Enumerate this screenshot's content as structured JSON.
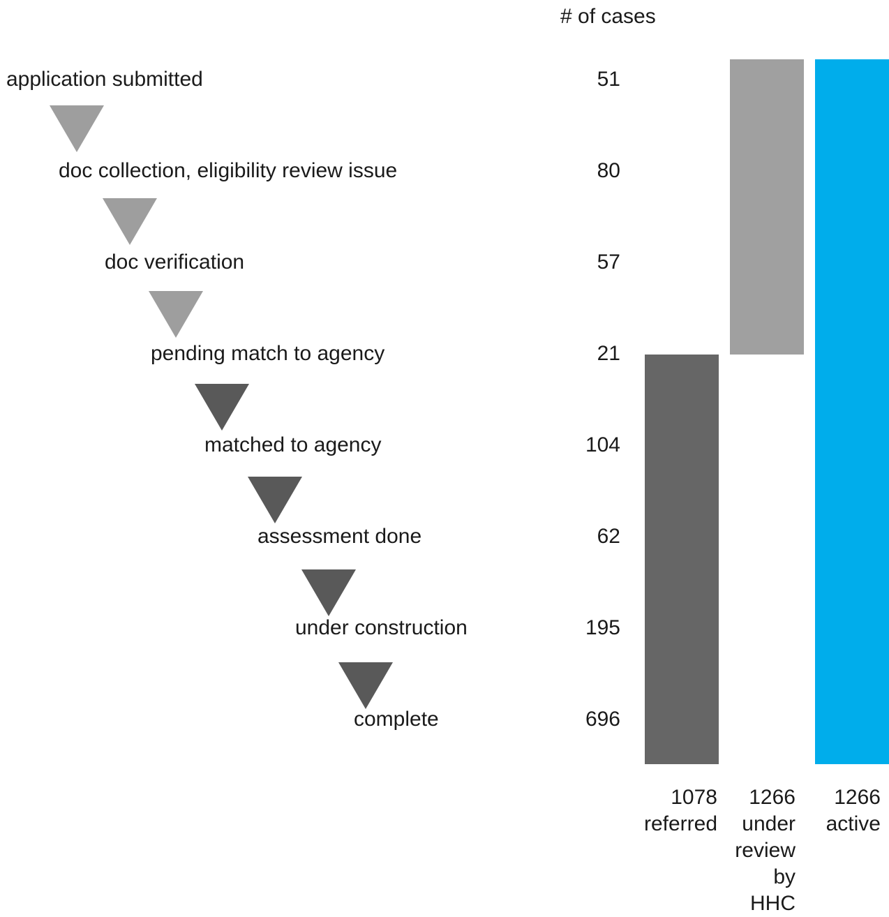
{
  "header": {
    "cases_label": "# of cases"
  },
  "stages": [
    {
      "label": "application submitted",
      "count": "51"
    },
    {
      "label": "doc collection, eligibility review issue",
      "count": "80"
    },
    {
      "label": "doc verification",
      "count": "57"
    },
    {
      "label": "pending match to agency",
      "count": "21"
    },
    {
      "label": "matched to agency",
      "count": "104"
    },
    {
      "label": "assessment done",
      "count": "62"
    },
    {
      "label": "under construction",
      "count": "195"
    },
    {
      "label": "complete",
      "count": "696"
    }
  ],
  "arrows": [
    {
      "icon": "down-triangle-icon",
      "color": "#9e9e9e"
    },
    {
      "icon": "down-triangle-icon",
      "color": "#9e9e9e"
    },
    {
      "icon": "down-triangle-icon",
      "color": "#9e9e9e"
    },
    {
      "icon": "down-triangle-icon",
      "color": "#595959"
    },
    {
      "icon": "down-triangle-icon",
      "color": "#595959"
    },
    {
      "icon": "down-triangle-icon",
      "color": "#595959"
    },
    {
      "icon": "down-triangle-icon",
      "color": "#595959"
    }
  ],
  "bars": [
    {
      "total": "1078",
      "caption": [
        "referred"
      ],
      "color": "#666666"
    },
    {
      "total": "1266",
      "caption": [
        "under",
        "review",
        "by",
        "HHC"
      ],
      "color": "#a0a0a0"
    },
    {
      "total": "1266",
      "caption": [
        "active"
      ],
      "color": "#00adeb"
    }
  ]
}
